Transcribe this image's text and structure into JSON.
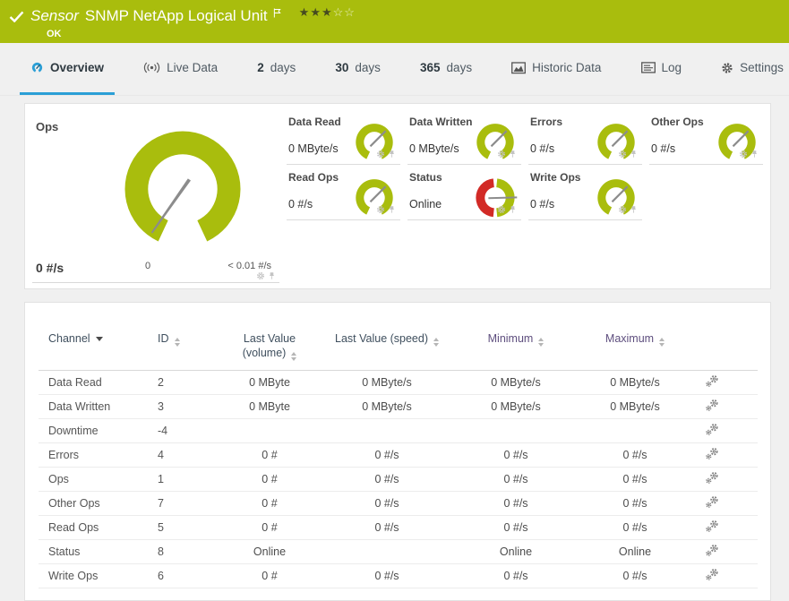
{
  "header": {
    "kind": "Sensor",
    "title": "SNMP NetApp Logical Unit",
    "status": "OK",
    "stars_filled": "★★★",
    "stars_empty": "☆☆"
  },
  "colors": {
    "status_ok_green": "#a9bd0d",
    "status_error_red": "#d22a26",
    "accent_blue": "#2b9fd6",
    "header_link_purple": "#5e4e7e",
    "needle_gray": "#8c8c8c"
  },
  "tabs": [
    {
      "id": "overview",
      "icon": "gauge-icon",
      "label": "Overview",
      "active": true
    },
    {
      "id": "live-data",
      "icon": "live-data-icon",
      "label": "Live Data",
      "active": false
    },
    {
      "id": "2-days",
      "prefix": "2",
      "label": "days",
      "active": false
    },
    {
      "id": "30-days",
      "prefix": "30",
      "label": "days",
      "active": false
    },
    {
      "id": "365-days",
      "prefix": "365",
      "label": "days",
      "active": false
    },
    {
      "id": "historic-data",
      "icon": "historic-data-icon",
      "label": "Historic Data",
      "active": false
    },
    {
      "id": "log",
      "icon": "log-icon",
      "label": "Log",
      "active": false
    },
    {
      "id": "settings",
      "icon": "settings-gear-icon",
      "label": "Settings",
      "active": false
    }
  ],
  "overview": {
    "main_gauge": {
      "label": "Ops",
      "value": "0 #/s",
      "scale_min": "0",
      "scale_max": "< 0.01 #/s"
    },
    "small_gauges": [
      {
        "label": "Data Read",
        "value": "0 MByte/s",
        "gauge": "green"
      },
      {
        "label": "Data Written",
        "value": "0 MByte/s",
        "gauge": "green"
      },
      {
        "label": "Errors",
        "value": "0 #/s",
        "gauge": "green"
      },
      {
        "label": "Other Ops",
        "value": "0 #/s",
        "gauge": "green"
      },
      {
        "label": "Read Ops",
        "value": "0 #/s",
        "gauge": "green"
      },
      {
        "label": "Status",
        "value": "Online",
        "gauge": "status"
      },
      {
        "label": "Write Ops",
        "value": "0 #/s",
        "gauge": "green"
      }
    ]
  },
  "table": {
    "headers": {
      "channel": "Channel",
      "id": "ID",
      "last_volume": "Last Value (volume)",
      "last_speed": "Last Value (speed)",
      "minimum": "Minimum",
      "maximum": "Maximum"
    },
    "rows": [
      {
        "channel": "Data Read",
        "id": "2",
        "last_volume": "0 MByte",
        "last_speed": "0 MByte/s",
        "minimum": "0 MByte/s",
        "maximum": "0 MByte/s"
      },
      {
        "channel": "Data Written",
        "id": "3",
        "last_volume": "0 MByte",
        "last_speed": "0 MByte/s",
        "minimum": "0 MByte/s",
        "maximum": "0 MByte/s"
      },
      {
        "channel": "Downtime",
        "id": "-4",
        "last_volume": "",
        "last_speed": "",
        "minimum": "",
        "maximum": ""
      },
      {
        "channel": "Errors",
        "id": "4",
        "last_volume": "0 #",
        "last_speed": "0 #/s",
        "minimum": "0 #/s",
        "maximum": "0 #/s"
      },
      {
        "channel": "Ops",
        "id": "1",
        "last_volume": "0 #",
        "last_speed": "0 #/s",
        "minimum": "0 #/s",
        "maximum": "0 #/s"
      },
      {
        "channel": "Other Ops",
        "id": "7",
        "last_volume": "0 #",
        "last_speed": "0 #/s",
        "minimum": "0 #/s",
        "maximum": "0 #/s"
      },
      {
        "channel": "Read Ops",
        "id": "5",
        "last_volume": "0 #",
        "last_speed": "0 #/s",
        "minimum": "0 #/s",
        "maximum": "0 #/s"
      },
      {
        "channel": "Status",
        "id": "8",
        "last_volume": "Online",
        "last_speed": "",
        "minimum": "Online",
        "maximum": "Online"
      },
      {
        "channel": "Write Ops",
        "id": "6",
        "last_volume": "0 #",
        "last_speed": "0 #/s",
        "minimum": "0 #/s",
        "maximum": "0 #/s"
      }
    ]
  }
}
